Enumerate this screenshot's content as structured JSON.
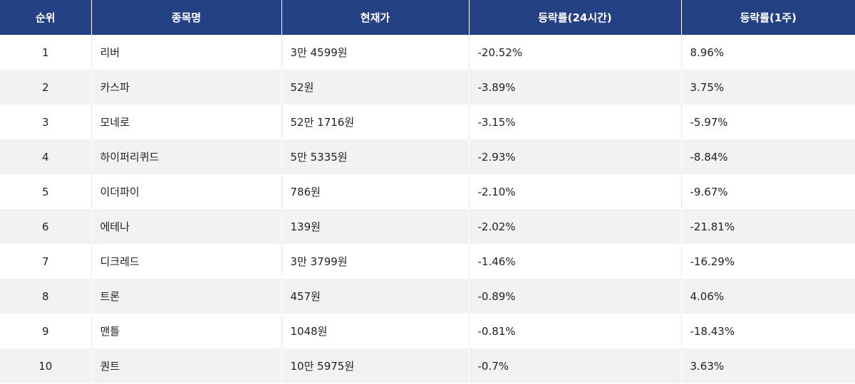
{
  "table": {
    "headers": [
      "순위",
      "종목명",
      "현재가",
      "등락률(24시간)",
      "등락률(1주)"
    ],
    "rows": [
      {
        "rank": "1",
        "name": "리버",
        "price": "3만 4599원",
        "change_24h": "-20.52%",
        "change_1w": "8.96%"
      },
      {
        "rank": "2",
        "name": "카스파",
        "price": "52원",
        "change_24h": "-3.89%",
        "change_1w": "3.75%"
      },
      {
        "rank": "3",
        "name": "모네로",
        "price": "52만 1716원",
        "change_24h": "-3.15%",
        "change_1w": "-5.97%"
      },
      {
        "rank": "4",
        "name": "하이퍼리퀴드",
        "price": "5만 5335원",
        "change_24h": "-2.93%",
        "change_1w": "-8.84%"
      },
      {
        "rank": "5",
        "name": "이더파이",
        "price": "786원",
        "change_24h": "-2.10%",
        "change_1w": "-9.67%"
      },
      {
        "rank": "6",
        "name": "에테나",
        "price": "139원",
        "change_24h": "-2.02%",
        "change_1w": "-21.81%"
      },
      {
        "rank": "7",
        "name": "디크레드",
        "price": "3만 3799원",
        "change_24h": "-1.46%",
        "change_1w": "-16.29%"
      },
      {
        "rank": "8",
        "name": "트론",
        "price": "457원",
        "change_24h": "-0.89%",
        "change_1w": "4.06%"
      },
      {
        "rank": "9",
        "name": "맨틀",
        "price": "1048원",
        "change_24h": "-0.81%",
        "change_1w": "-18.43%"
      },
      {
        "rank": "10",
        "name": "퀀트",
        "price": "10만 5975원",
        "change_24h": "-0.7%",
        "change_1w": "3.63%"
      }
    ]
  },
  "colors": {
    "header_bg": "#244183",
    "header_text": "#ffffff",
    "row_alt_bg": "#f2f2f2"
  }
}
